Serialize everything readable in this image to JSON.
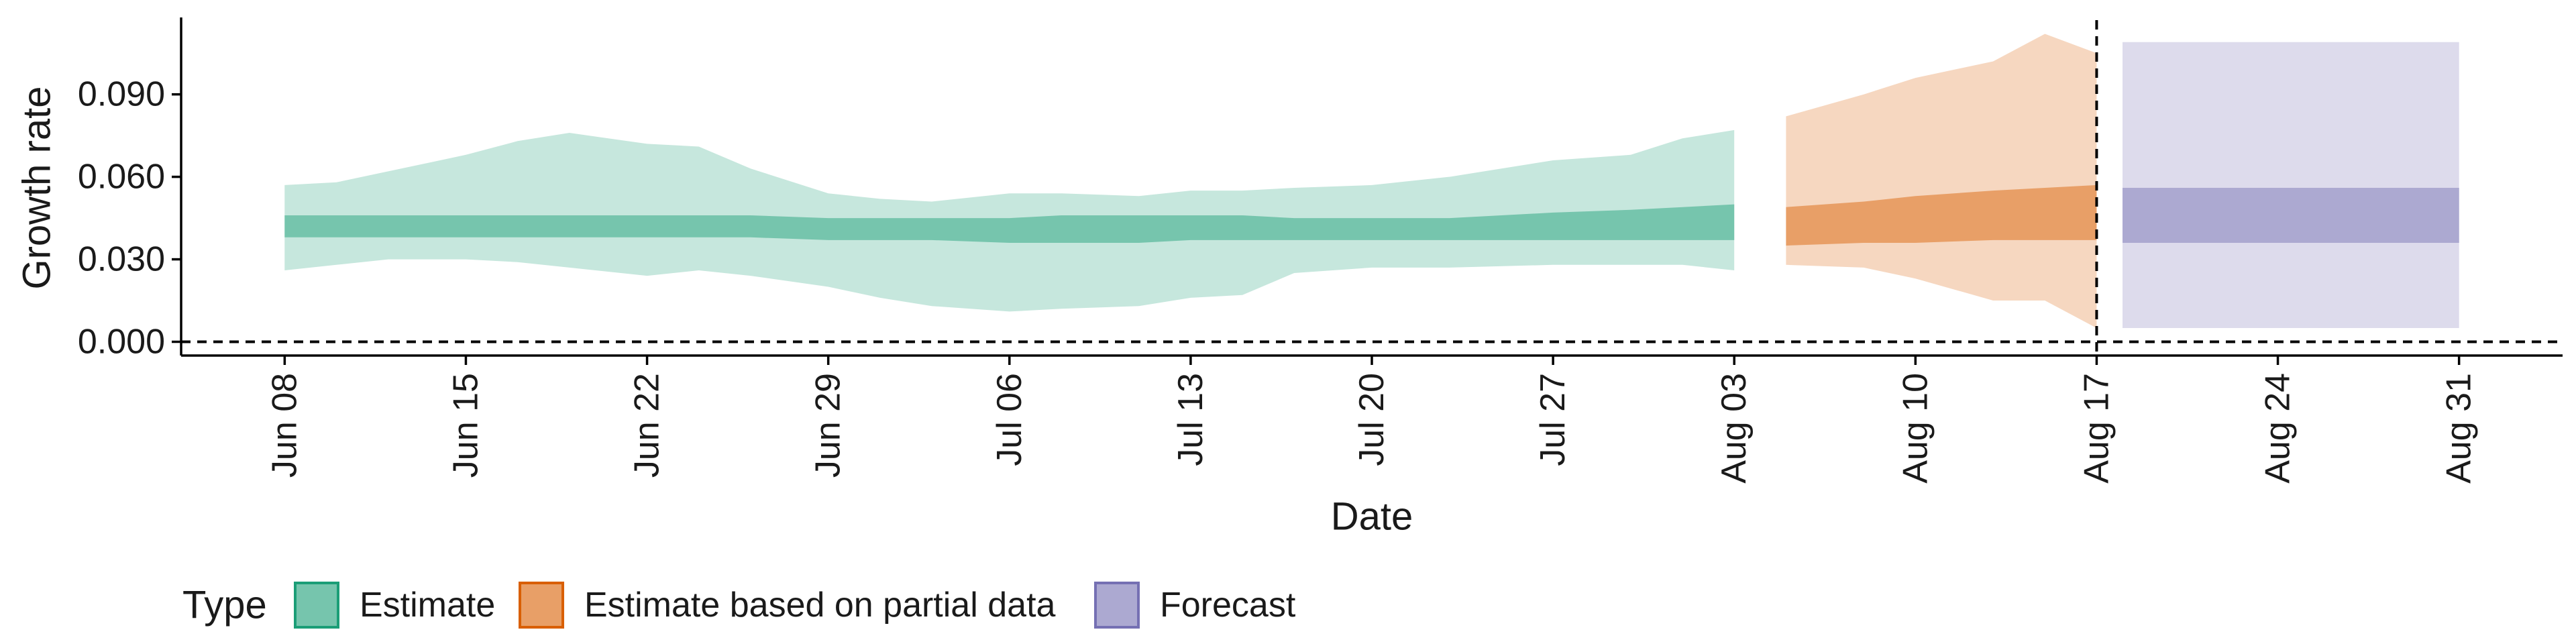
{
  "chart_data": {
    "type": "area",
    "xlabel": "Date",
    "ylabel": "Growth rate",
    "x_ticks": [
      "Jun 08",
      "Jun 15",
      "Jun 22",
      "Jun 29",
      "Jul 06",
      "Jul 13",
      "Jul 20",
      "Jul 27",
      "Aug 03",
      "Aug 10",
      "Aug 17",
      "Aug 24",
      "Aug 31"
    ],
    "y_ticks": [
      "0.000",
      "0.030",
      "0.060",
      "0.090"
    ],
    "ylim": [
      -0.005,
      0.117
    ],
    "xlim": [
      "2020-06-04",
      "2020-09-04"
    ],
    "reference_lines": {
      "y": 0.0,
      "x": "2020-08-17",
      "style": "dashed"
    },
    "legend": {
      "title": "Type",
      "position": "bottom",
      "entries": [
        "Estimate",
        "Estimate based on partial data",
        "Forecast"
      ]
    },
    "series": [
      {
        "name": "Estimate",
        "color": "#1b9e77",
        "points": [
          {
            "x": "2020-06-08",
            "inner": [
              0.038,
              0.046
            ],
            "outer": [
              0.026,
              0.057
            ]
          },
          {
            "x": "2020-06-10",
            "inner": [
              0.038,
              0.046
            ],
            "outer": [
              0.028,
              0.058
            ]
          },
          {
            "x": "2020-06-12",
            "inner": [
              0.038,
              0.046
            ],
            "outer": [
              0.03,
              0.062
            ]
          },
          {
            "x": "2020-06-15",
            "inner": [
              0.038,
              0.046
            ],
            "outer": [
              0.03,
              0.068
            ]
          },
          {
            "x": "2020-06-17",
            "inner": [
              0.038,
              0.046
            ],
            "outer": [
              0.029,
              0.073
            ]
          },
          {
            "x": "2020-06-19",
            "inner": [
              0.038,
              0.046
            ],
            "outer": [
              0.027,
              0.076
            ]
          },
          {
            "x": "2020-06-22",
            "inner": [
              0.038,
              0.046
            ],
            "outer": [
              0.024,
              0.072
            ]
          },
          {
            "x": "2020-06-24",
            "inner": [
              0.038,
              0.046
            ],
            "outer": [
              0.026,
              0.071
            ]
          },
          {
            "x": "2020-06-26",
            "inner": [
              0.038,
              0.046
            ],
            "outer": [
              0.024,
              0.063
            ]
          },
          {
            "x": "2020-06-29",
            "inner": [
              0.037,
              0.045
            ],
            "outer": [
              0.02,
              0.054
            ]
          },
          {
            "x": "2020-07-01",
            "inner": [
              0.037,
              0.045
            ],
            "outer": [
              0.016,
              0.052
            ]
          },
          {
            "x": "2020-07-03",
            "inner": [
              0.037,
              0.045
            ],
            "outer": [
              0.013,
              0.051
            ]
          },
          {
            "x": "2020-07-06",
            "inner": [
              0.036,
              0.045
            ],
            "outer": [
              0.011,
              0.054
            ]
          },
          {
            "x": "2020-07-08",
            "inner": [
              0.036,
              0.046
            ],
            "outer": [
              0.012,
              0.054
            ]
          },
          {
            "x": "2020-07-11",
            "inner": [
              0.036,
              0.046
            ],
            "outer": [
              0.013,
              0.053
            ]
          },
          {
            "x": "2020-07-13",
            "inner": [
              0.037,
              0.046
            ],
            "outer": [
              0.016,
              0.055
            ]
          },
          {
            "x": "2020-07-15",
            "inner": [
              0.037,
              0.046
            ],
            "outer": [
              0.017,
              0.055
            ]
          },
          {
            "x": "2020-07-17",
            "inner": [
              0.037,
              0.045
            ],
            "outer": [
              0.025,
              0.056
            ]
          },
          {
            "x": "2020-07-20",
            "inner": [
              0.037,
              0.045
            ],
            "outer": [
              0.027,
              0.057
            ]
          },
          {
            "x": "2020-07-23",
            "inner": [
              0.037,
              0.045
            ],
            "outer": [
              0.027,
              0.06
            ]
          },
          {
            "x": "2020-07-27",
            "inner": [
              0.037,
              0.047
            ],
            "outer": [
              0.028,
              0.066
            ]
          },
          {
            "x": "2020-07-30",
            "inner": [
              0.037,
              0.048
            ],
            "outer": [
              0.028,
              0.068
            ]
          },
          {
            "x": "2020-08-01",
            "inner": [
              0.037,
              0.049
            ],
            "outer": [
              0.028,
              0.074
            ]
          },
          {
            "x": "2020-08-03",
            "inner": [
              0.037,
              0.05
            ],
            "outer": [
              0.026,
              0.077
            ]
          }
        ]
      },
      {
        "name": "Estimate based on partial data",
        "color": "#d95f02",
        "points": [
          {
            "x": "2020-08-05",
            "inner": [
              0.035,
              0.049
            ],
            "outer": [
              0.028,
              0.082
            ]
          },
          {
            "x": "2020-08-08",
            "inner": [
              0.036,
              0.051
            ],
            "outer": [
              0.027,
              0.09
            ]
          },
          {
            "x": "2020-08-10",
            "inner": [
              0.036,
              0.053
            ],
            "outer": [
              0.023,
              0.096
            ]
          },
          {
            "x": "2020-08-13",
            "inner": [
              0.037,
              0.055
            ],
            "outer": [
              0.015,
              0.102
            ]
          },
          {
            "x": "2020-08-15",
            "inner": [
              0.037,
              0.056
            ],
            "outer": [
              0.015,
              0.112
            ]
          },
          {
            "x": "2020-08-17",
            "inner": [
              0.037,
              0.057
            ],
            "outer": [
              0.005,
              0.105
            ]
          }
        ]
      },
      {
        "name": "Forecast",
        "color": "#7570b3",
        "points": [
          {
            "x": "2020-08-18",
            "inner": [
              0.036,
              0.056
            ],
            "outer": [
              0.005,
              0.109
            ]
          },
          {
            "x": "2020-08-31",
            "inner": [
              0.036,
              0.056
            ],
            "outer": [
              0.005,
              0.109
            ]
          }
        ]
      }
    ]
  }
}
